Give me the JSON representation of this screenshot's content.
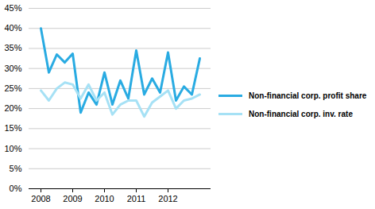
{
  "chart_data": {
    "type": "line",
    "categories": [
      "2008",
      null,
      null,
      null,
      "2009",
      null,
      null,
      null,
      "2010",
      null,
      null,
      null,
      "2011",
      null,
      null,
      null,
      "2012",
      null,
      null,
      null,
      null
    ],
    "series": [
      {
        "name": "Non-financial corp. profit share",
        "color": "#29abe2",
        "values": [
          40,
          29,
          33.5,
          31.5,
          33.7,
          19,
          24,
          21,
          29,
          21,
          27,
          22.5,
          34.5,
          23.5,
          27.5,
          24,
          34,
          22,
          25.5,
          23.5,
          32.5
        ]
      },
      {
        "name": "Non-financial corp. inv. rate",
        "color": "#a6e1f5",
        "values": [
          24.5,
          22,
          25,
          26.5,
          26,
          22.5,
          26,
          22,
          24,
          18.5,
          21,
          22,
          22,
          18,
          21.5,
          23,
          24.5,
          20,
          22,
          22.5,
          23.5
        ]
      }
    ],
    "ylim": [
      0,
      45
    ],
    "yticks": [
      {
        "value": 0,
        "label": "0%"
      },
      {
        "value": 5,
        "label": "5%"
      },
      {
        "value": 10,
        "label": "10%"
      },
      {
        "value": 15,
        "label": "15%"
      },
      {
        "value": 20,
        "label": "20%"
      },
      {
        "value": 25,
        "label": "25%"
      },
      {
        "value": 30,
        "label": "30%"
      },
      {
        "value": 35,
        "label": "35%"
      },
      {
        "value": 40,
        "label": "40%"
      },
      {
        "value": 45,
        "label": "45%"
      }
    ],
    "grid": true,
    "legend": "right"
  }
}
